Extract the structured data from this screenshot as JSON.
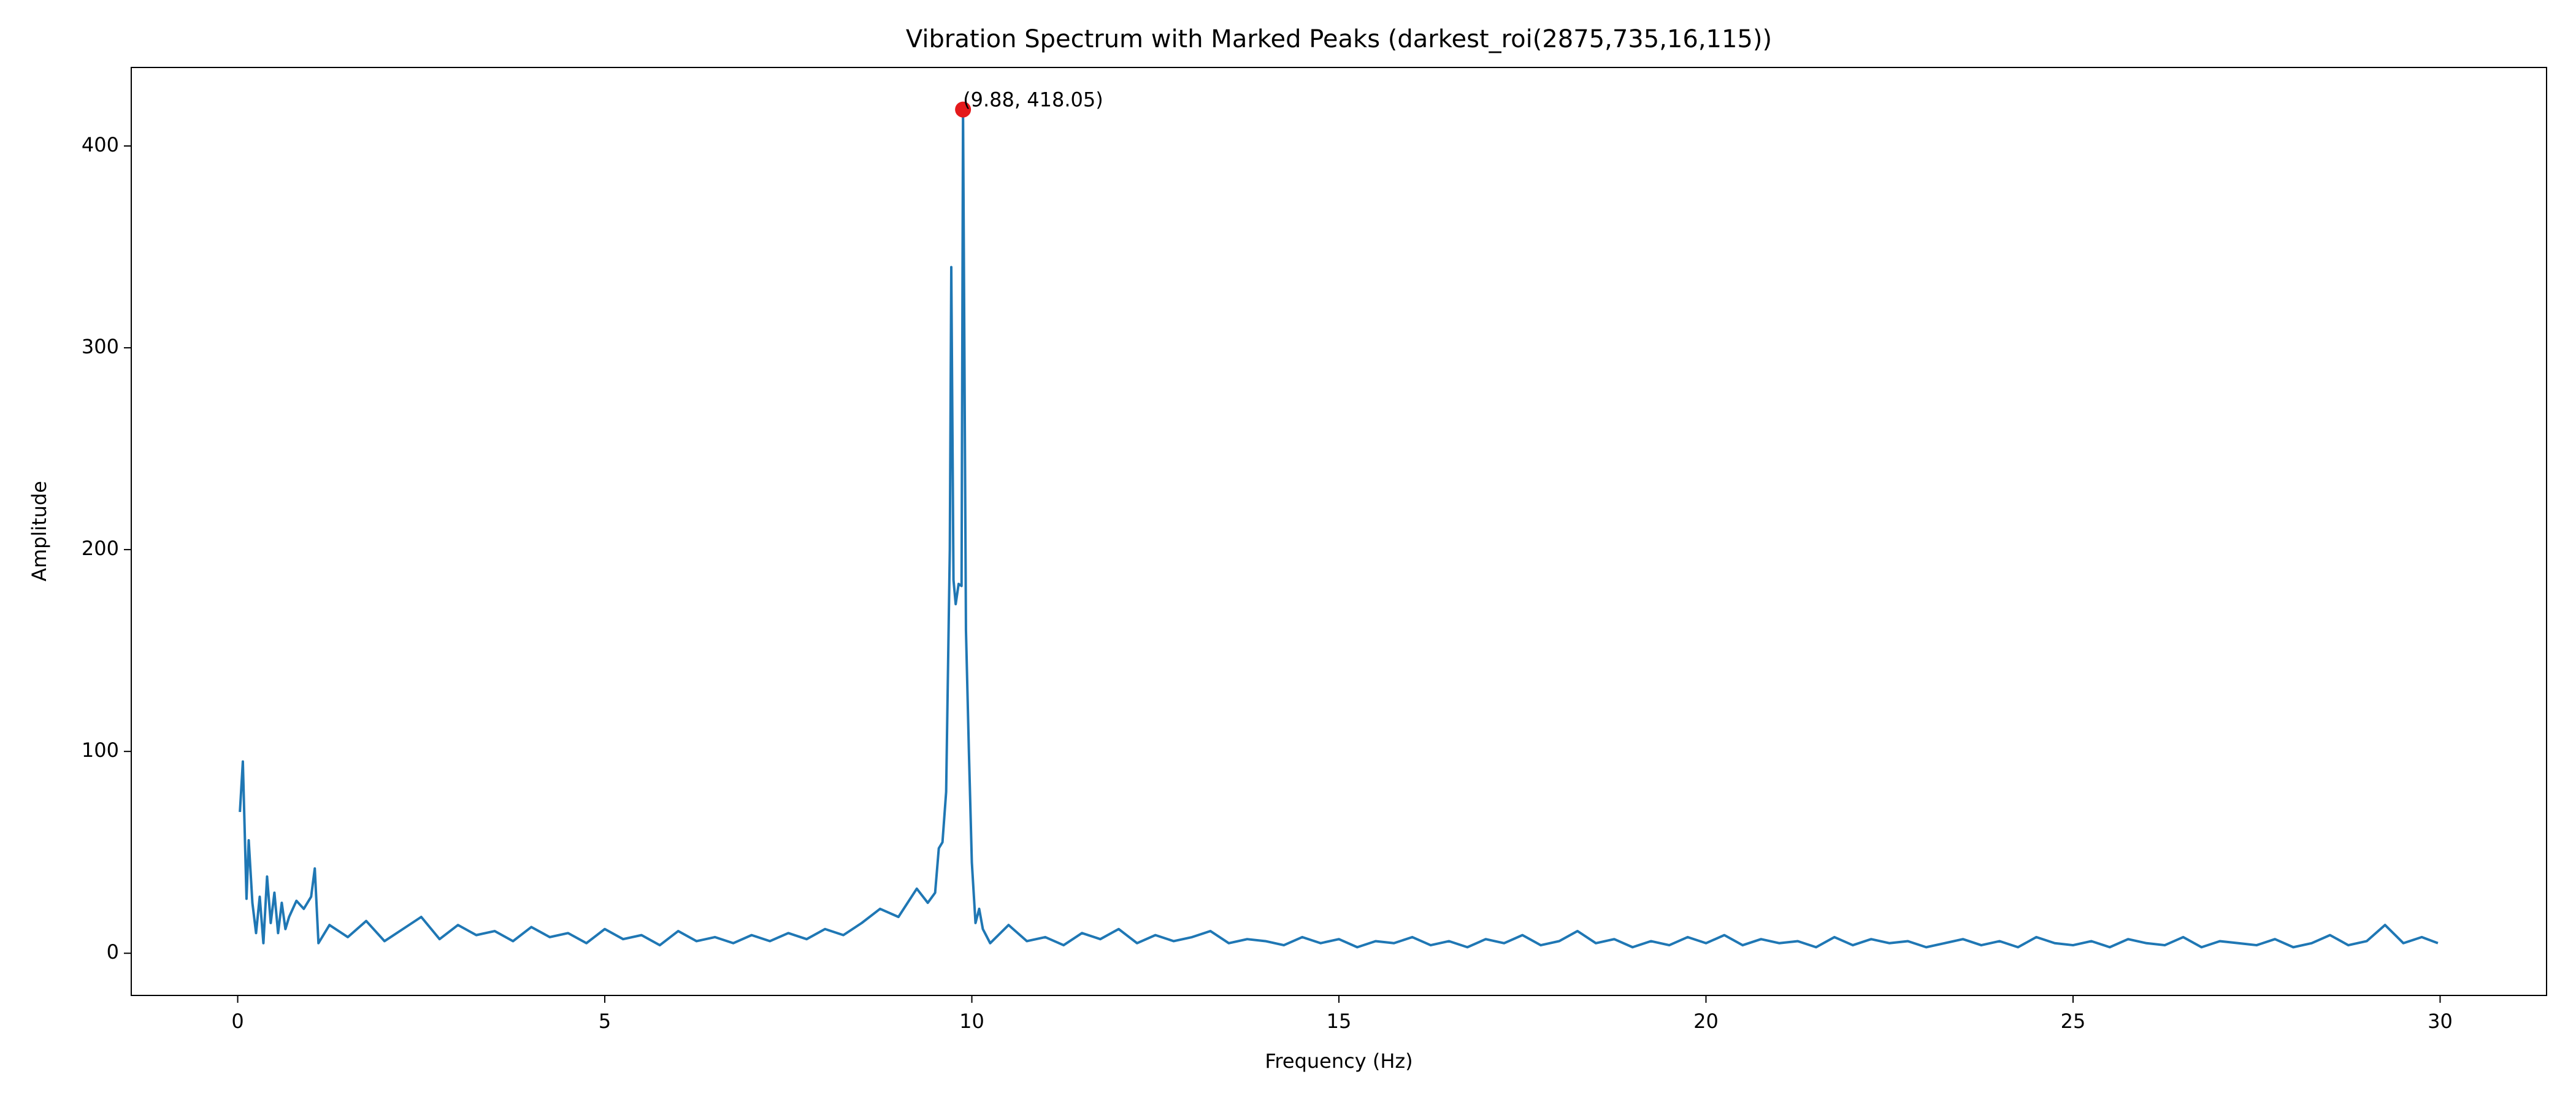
{
  "chart_data": {
    "type": "line",
    "title": "Vibration Spectrum with Marked Peaks (darkest_roi(2875,735,16,115))",
    "x_label": "Frequency (Hz)",
    "y_label": "Amplitude",
    "xlim": [
      -1.45,
      31.45
    ],
    "ylim": [
      -20.9,
      438.9
    ],
    "xticks": [
      0,
      5,
      10,
      15,
      20,
      25,
      30
    ],
    "yticks": [
      0,
      100,
      200,
      300,
      400
    ],
    "grid": false,
    "annotations": [
      {
        "text": "(9.88, 418.05)",
        "x": 9.88,
        "y": 418.05,
        "color": "#e41a1c"
      }
    ],
    "series": [
      {
        "color": "#1f77b4",
        "x": [
          0.03,
          0.07,
          0.12,
          0.15,
          0.2,
          0.25,
          0.3,
          0.35,
          0.4,
          0.45,
          0.5,
          0.55,
          0.6,
          0.65,
          0.7,
          0.8,
          0.9,
          1.0,
          1.05,
          1.1,
          1.25,
          1.5,
          1.75,
          2.0,
          2.25,
          2.5,
          2.75,
          3.0,
          3.25,
          3.5,
          3.75,
          4.0,
          4.25,
          4.5,
          4.75,
          5.0,
          5.25,
          5.5,
          5.75,
          6.0,
          6.25,
          6.5,
          6.75,
          7.0,
          7.25,
          7.5,
          7.75,
          8.0,
          8.25,
          8.5,
          8.75,
          9.0,
          9.25,
          9.4,
          9.5,
          9.55,
          9.6,
          9.65,
          9.7,
          9.72,
          9.75,
          9.78,
          9.82,
          9.86,
          9.88,
          9.92,
          9.96,
          10.0,
          10.05,
          10.1,
          10.15,
          10.25,
          10.5,
          10.75,
          11.0,
          11.25,
          11.5,
          11.75,
          12.0,
          12.25,
          12.5,
          12.75,
          13.0,
          13.25,
          13.5,
          13.75,
          14.0,
          14.25,
          14.5,
          14.75,
          15.0,
          15.25,
          15.5,
          15.75,
          16.0,
          16.25,
          16.5,
          16.75,
          17.0,
          17.25,
          17.5,
          17.75,
          18.0,
          18.25,
          18.5,
          18.75,
          19.0,
          19.25,
          19.5,
          19.75,
          20.0,
          20.25,
          20.5,
          20.75,
          21.0,
          21.25,
          21.5,
          21.75,
          22.0,
          22.25,
          22.5,
          22.75,
          23.0,
          23.25,
          23.5,
          23.75,
          24.0,
          24.25,
          24.5,
          24.75,
          25.0,
          25.25,
          25.5,
          25.75,
          26.0,
          26.25,
          26.5,
          26.75,
          27.0,
          27.25,
          27.5,
          27.75,
          28.0,
          28.25,
          28.5,
          28.75,
          29.0,
          29.25,
          29.5,
          29.75,
          29.97
        ],
        "values": [
          70,
          95,
          27,
          56,
          25,
          10,
          28,
          5,
          38,
          15,
          30,
          10,
          25,
          12,
          18,
          26,
          22,
          28,
          42,
          5,
          14,
          8,
          16,
          6,
          12,
          18,
          7,
          14,
          9,
          11,
          6,
          13,
          8,
          10,
          5,
          12,
          7,
          9,
          4,
          11,
          6,
          8,
          5,
          9,
          6,
          10,
          7,
          12,
          9,
          15,
          22,
          18,
          32,
          25,
          30,
          52,
          55,
          80,
          200,
          340,
          185,
          173,
          183,
          182,
          418.05,
          160,
          100,
          45,
          15,
          22,
          12,
          5,
          14,
          6,
          8,
          4,
          10,
          7,
          12,
          5,
          9,
          6,
          8,
          11,
          5,
          7,
          6,
          4,
          8,
          5,
          7,
          3,
          6,
          5,
          8,
          4,
          6,
          3,
          7,
          5,
          9,
          4,
          6,
          11,
          5,
          7,
          3,
          6,
          4,
          8,
          5,
          9,
          4,
          7,
          5,
          6,
          3,
          8,
          4,
          7,
          5,
          6,
          3,
          5,
          7,
          4,
          6,
          3,
          8,
          5,
          4,
          6,
          3,
          7,
          5,
          4,
          8,
          3,
          6,
          5,
          4,
          7,
          3,
          5,
          9,
          4,
          6,
          14,
          5,
          8,
          5
        ]
      }
    ]
  }
}
